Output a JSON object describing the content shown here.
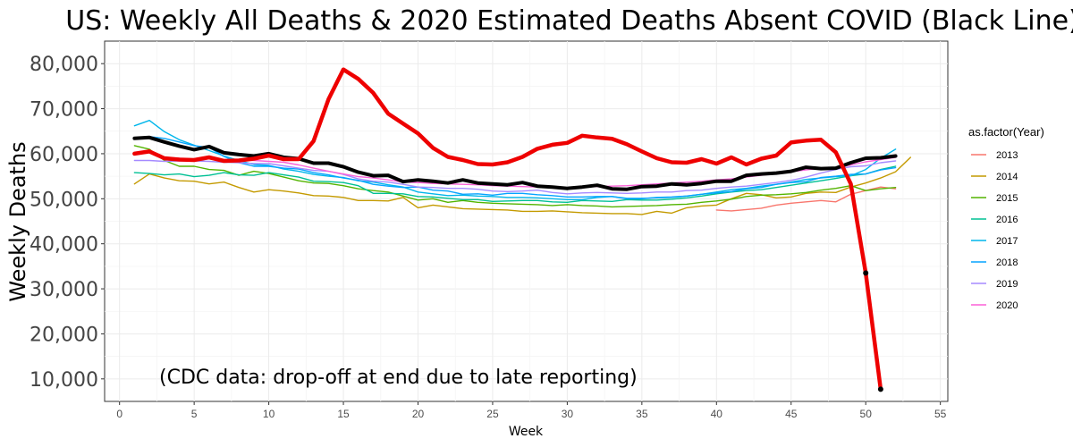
{
  "chart_data": {
    "type": "line",
    "title": "US: Weekly All Deaths & 2020 Estimated Deaths Absent COVID (Black Line)",
    "xlabel": "Week",
    "ylabel": "Weekly Deaths",
    "xlim": [
      -1,
      55.5
    ],
    "ylim": [
      5000,
      85000
    ],
    "x_ticks": [
      0,
      5,
      10,
      15,
      20,
      25,
      30,
      35,
      40,
      45,
      50,
      55
    ],
    "y_ticks": [
      10000,
      20000,
      30000,
      40000,
      50000,
      60000,
      70000,
      80000
    ],
    "y_tick_labels": [
      "10,000",
      "20,000",
      "30,000",
      "40,000",
      "50,000",
      "60,000",
      "70,000",
      "80,000"
    ],
    "grid": true,
    "legend_title": "as.factor(Year)",
    "legend_position": "right",
    "annotation": "(CDC data: drop-off at end due to late reporting)",
    "series": [
      {
        "name": "2013",
        "color": "#F8766D",
        "x": [
          40,
          41,
          42,
          43,
          44,
          45,
          46,
          47,
          48,
          49,
          50,
          51,
          52
        ],
        "y": [
          47500,
          47300,
          47600,
          47900,
          48600,
          49000,
          49300,
          49600,
          49300,
          51000,
          51800,
          52600,
          52200
        ]
      },
      {
        "name": "2014",
        "color": "#C49A00",
        "x": [
          1,
          2,
          3,
          4,
          5,
          6,
          7,
          8,
          9,
          10,
          11,
          12,
          13,
          14,
          15,
          16,
          17,
          18,
          19,
          20,
          21,
          22,
          23,
          24,
          25,
          26,
          27,
          28,
          29,
          30,
          31,
          32,
          33,
          34,
          35,
          36,
          37,
          38,
          39,
          40,
          41,
          42,
          43,
          44,
          45,
          46,
          47,
          48,
          49,
          50,
          51,
          52,
          53
        ],
        "y": [
          53300,
          55500,
          54600,
          54000,
          53900,
          53300,
          53700,
          52500,
          51500,
          52000,
          51700,
          51300,
          50700,
          50600,
          50300,
          49600,
          49600,
          49500,
          50300,
          48000,
          48600,
          48200,
          47800,
          47700,
          47600,
          47500,
          47200,
          47200,
          47300,
          47100,
          46900,
          46800,
          46700,
          46700,
          46500,
          47200,
          46800,
          48000,
          48400,
          48600,
          50000,
          51200,
          50900,
          50200,
          50400,
          51200,
          51500,
          51400,
          52600,
          53500,
          54600,
          56000,
          59200
        ]
      },
      {
        "name": "2015",
        "color": "#53B400",
        "x": [
          1,
          2,
          3,
          4,
          5,
          6,
          7,
          8,
          9,
          10,
          11,
          12,
          13,
          14,
          15,
          16,
          17,
          18,
          19,
          20,
          21,
          22,
          23,
          24,
          25,
          26,
          27,
          28,
          29,
          30,
          31,
          32,
          33,
          34,
          35,
          36,
          37,
          38,
          39,
          40,
          41,
          42,
          43,
          44,
          45,
          46,
          47,
          48,
          49,
          50,
          51,
          52
        ],
        "y": [
          61800,
          61000,
          58500,
          57200,
          57200,
          56500,
          56300,
          55200,
          56100,
          55600,
          54800,
          54000,
          53500,
          53400,
          52900,
          52200,
          51800,
          51500,
          50600,
          49700,
          50000,
          49200,
          49600,
          49200,
          49000,
          48900,
          48800,
          48700,
          48500,
          48700,
          48500,
          48400,
          48200,
          48300,
          48400,
          48500,
          48700,
          48800,
          49200,
          49500,
          49900,
          50500,
          50800,
          50900,
          51100,
          51400,
          51900,
          52300,
          52900,
          51800,
          52200,
          52500
        ]
      },
      {
        "name": "2016",
        "color": "#00C094",
        "x": [
          1,
          2,
          3,
          4,
          5,
          6,
          7,
          8,
          9,
          10,
          11,
          12,
          13,
          14,
          15,
          16,
          17,
          18,
          19,
          20,
          21,
          22,
          23,
          24,
          25,
          26,
          27,
          28,
          29,
          30,
          31,
          32,
          33,
          34,
          35,
          36,
          37,
          38,
          39,
          40,
          41,
          42,
          43,
          44,
          45,
          46,
          47,
          48,
          49,
          50,
          51,
          52
        ],
        "y": [
          55800,
          55600,
          55300,
          55500,
          54900,
          55200,
          55800,
          55300,
          55200,
          55800,
          55300,
          54800,
          53900,
          53800,
          53600,
          52900,
          51200,
          51200,
          51100,
          50500,
          50400,
          50100,
          49800,
          49800,
          49400,
          49500,
          49600,
          49600,
          49300,
          49200,
          49600,
          49500,
          49400,
          49800,
          49700,
          49700,
          49900,
          50200,
          50600,
          51100,
          51500,
          51800,
          52000,
          52500,
          53000,
          53500,
          54000,
          54500,
          55100,
          55500,
          56500,
          57200
        ]
      },
      {
        "name": "2017",
        "color": "#00B6EB",
        "x": [
          1,
          2,
          3,
          4,
          5,
          6,
          7,
          8,
          9,
          10,
          11,
          12,
          13,
          14,
          15,
          16,
          17,
          18,
          19,
          20,
          21,
          22,
          23,
          24,
          25,
          26,
          27,
          28,
          29,
          30,
          31,
          32,
          33,
          34,
          35,
          36,
          37,
          38,
          39,
          40,
          41,
          42,
          43,
          44,
          45,
          46,
          47,
          48,
          49,
          50,
          51,
          52
        ],
        "y": [
          66200,
          67400,
          64900,
          63100,
          61900,
          60700,
          59500,
          58500,
          57600,
          57400,
          56600,
          56100,
          55400,
          55000,
          54700,
          54000,
          53700,
          53100,
          52600,
          51500,
          51100,
          50700,
          50800,
          50600,
          50500,
          50300,
          50300,
          50200,
          50000,
          49800,
          49800,
          50300,
          50500,
          50100,
          50100,
          50200,
          50300,
          50600,
          51000,
          51500,
          52000,
          52300,
          52800,
          53200,
          53700,
          54300,
          54600,
          54900,
          55100,
          56500,
          59000,
          61000
        ]
      },
      {
        "name": "2018",
        "color": "#06A4FF",
        "x": [
          1,
          2,
          3,
          4,
          5,
          6,
          7,
          8,
          9,
          10,
          11,
          12,
          13,
          14,
          15,
          16,
          17,
          18,
          19,
          20,
          21,
          22,
          23,
          24,
          25,
          26,
          27,
          28,
          29,
          30,
          31,
          32,
          33,
          34,
          35,
          36,
          37,
          38,
          39,
          40,
          41,
          42,
          43,
          44,
          45,
          46,
          47,
          48,
          49,
          50,
          51,
          52
        ],
        "y": [
          63500,
          63800,
          63400,
          62600,
          61800,
          61400,
          59400,
          58000,
          57200,
          57200,
          56800,
          56600,
          55800,
          55300,
          54600,
          54100,
          53200,
          52800,
          52500,
          52600,
          51900,
          51700,
          51000,
          51100,
          50800,
          51200,
          51200,
          50900,
          50700,
          50400,
          50400,
          50500,
          50500,
          50000,
          50000,
          50300,
          50400,
          50600,
          51000,
          51300,
          51600,
          52200,
          52500,
          53200,
          53600,
          53800,
          54700,
          55000,
          55400,
          55500,
          56400,
          56900
        ]
      },
      {
        "name": "2019",
        "color": "#A58AFF",
        "x": [
          1,
          2,
          3,
          4,
          5,
          6,
          7,
          8,
          9,
          10,
          11,
          12,
          13,
          14,
          15,
          16,
          17,
          18,
          19,
          20,
          21,
          22,
          23,
          24,
          25,
          26,
          27,
          28,
          29,
          30,
          31,
          32,
          33,
          34,
          35,
          36,
          37,
          38,
          39,
          40,
          41,
          42,
          43,
          44,
          45,
          46,
          47,
          48,
          49,
          50,
          51,
          52
        ],
        "y": [
          58500,
          58500,
          58300,
          58400,
          58400,
          58300,
          58100,
          58000,
          57800,
          57800,
          57300,
          56800,
          56300,
          56100,
          55400,
          54400,
          53900,
          53700,
          53200,
          52600,
          52500,
          52300,
          52300,
          52100,
          51700,
          51600,
          51700,
          51900,
          51400,
          51100,
          51300,
          51400,
          51300,
          51200,
          51300,
          51500,
          51500,
          51800,
          51900,
          52300,
          52600,
          52800,
          53200,
          53600,
          54100,
          54800,
          55700,
          56500,
          57100,
          57300,
          58000,
          58400
        ]
      },
      {
        "name": "2020",
        "color": "#FB61D7",
        "x": [
          1,
          2,
          3,
          4,
          5,
          6,
          7,
          8,
          9,
          10,
          11,
          12,
          13,
          14,
          15,
          16,
          17,
          18,
          19,
          20,
          21,
          22,
          23,
          24,
          25,
          26,
          27,
          28,
          29,
          30,
          31,
          32,
          33,
          34,
          35,
          36,
          37,
          38,
          39,
          40,
          41,
          42,
          43,
          44,
          45,
          46,
          47,
          48,
          49,
          50,
          51,
          52
        ],
        "y": [
          60200,
          60300,
          59200,
          59000,
          58800,
          58900,
          58700,
          58600,
          58500,
          58300,
          58100,
          57500,
          56800,
          56100,
          55500,
          54900,
          54600,
          54200,
          53700,
          53600,
          53400,
          53300,
          53200,
          53100,
          52900,
          52800,
          52700,
          52600,
          52500,
          52400,
          52600,
          52700,
          52800,
          52900,
          53100,
          53300,
          53500,
          53700,
          53900,
          54200,
          54400,
          54800,
          55200,
          55600,
          56000,
          56400,
          56800,
          56900,
          57500,
          58200,
          58700,
          59200
        ]
      },
      {
        "color": "#000000",
        "role": "estimated-absent-covid",
        "x": [
          1,
          2,
          3,
          4,
          5,
          6,
          7,
          8,
          9,
          10,
          11,
          12,
          13,
          14,
          15,
          16,
          17,
          18,
          19,
          20,
          21,
          22,
          23,
          24,
          25,
          26,
          27,
          28,
          29,
          30,
          31,
          32,
          33,
          34,
          35,
          36,
          37,
          38,
          39,
          40,
          41,
          42,
          43,
          44,
          45,
          46,
          47,
          48,
          49,
          50,
          51,
          52
        ],
        "y": [
          63400,
          63600,
          62600,
          61700,
          60900,
          61600,
          60200,
          59800,
          59500,
          60000,
          59200,
          58900,
          57900,
          57900,
          57100,
          55900,
          55100,
          55200,
          53800,
          54200,
          53900,
          53500,
          54200,
          53500,
          53300,
          53100,
          53600,
          52800,
          52600,
          52300,
          52600,
          53000,
          52200,
          52100,
          52700,
          52800,
          53300,
          53100,
          53400,
          53900,
          53900,
          55200,
          55500,
          55700,
          56100,
          57000,
          56700,
          56800,
          58000,
          59000,
          59100,
          59500
        ]
      },
      {
        "color": "#EE0000",
        "role": "all-deaths-2020",
        "x": [
          1,
          2,
          3,
          4,
          5,
          6,
          7,
          8,
          9,
          10,
          11,
          12,
          13,
          14,
          15,
          16,
          17,
          18,
          19,
          20,
          21,
          22,
          23,
          24,
          25,
          26,
          27,
          28,
          29,
          30,
          31,
          32,
          33,
          34,
          35,
          36,
          37,
          38,
          39,
          40,
          41,
          42,
          43,
          44,
          45,
          46,
          47,
          48,
          49,
          50,
          51
        ],
        "y": [
          60000,
          60500,
          59000,
          58700,
          58600,
          59200,
          58400,
          58500,
          58900,
          59600,
          58800,
          58800,
          62800,
          72100,
          78700,
          76600,
          73500,
          68900,
          66700,
          64500,
          61300,
          59300,
          58600,
          57700,
          57600,
          58100,
          59300,
          61100,
          62000,
          62400,
          64000,
          63600,
          63300,
          62100,
          60500,
          59000,
          58100,
          58000,
          58800,
          57800,
          59200,
          57600,
          58900,
          59600,
          62500,
          62900,
          63100,
          60300,
          53300,
          33500,
          7700
        ]
      }
    ]
  }
}
